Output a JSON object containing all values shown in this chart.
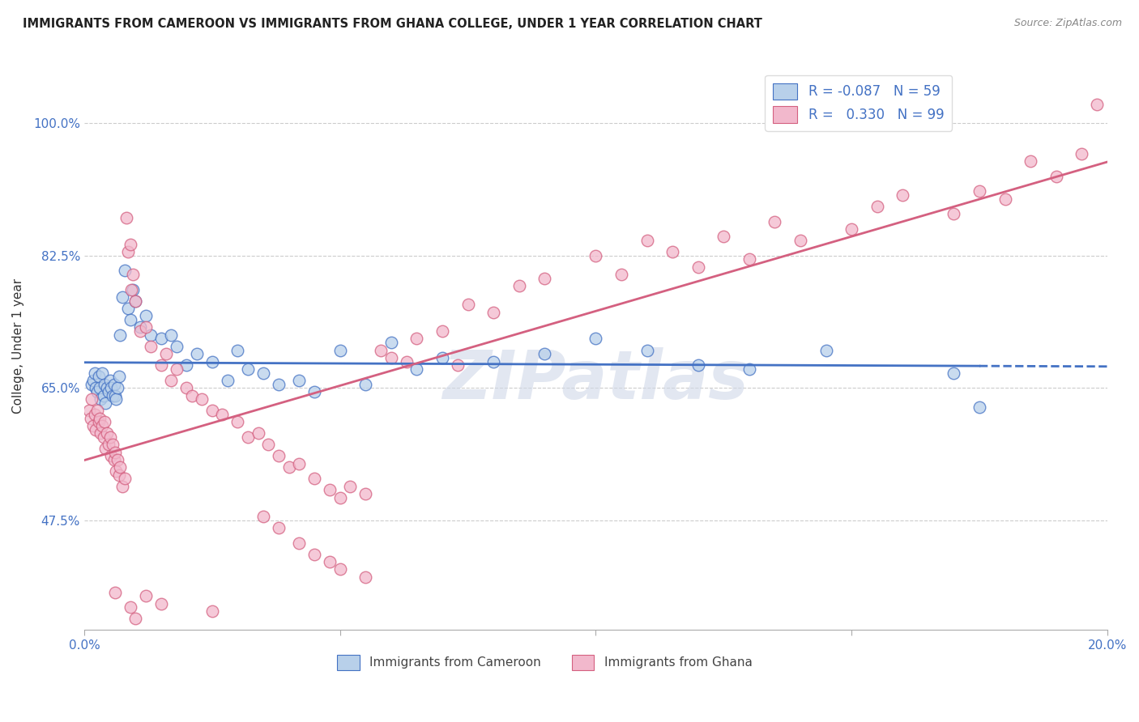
{
  "title": "IMMIGRANTS FROM CAMEROON VS IMMIGRANTS FROM GHANA COLLEGE, UNDER 1 YEAR CORRELATION CHART",
  "source": "Source: ZipAtlas.com",
  "ylabel": "College, Under 1 year",
  "y_ticks": [
    47.5,
    65.0,
    82.5,
    100.0
  ],
  "y_tick_labels": [
    "47.5%",
    "65.0%",
    "82.5%",
    "100.0%"
  ],
  "xlim": [
    0.0,
    20.0
  ],
  "ylim": [
    33.0,
    108.0
  ],
  "cameroon_color": "#b8d0ea",
  "ghana_color": "#f2b8cc",
  "cameroon_line_color": "#4472c4",
  "ghana_line_color": "#d46080",
  "legend_label_cameroon": "Immigrants from Cameroon",
  "legend_label_ghana": "Immigrants from Ghana",
  "cameroon_points": [
    [
      0.15,
      65.5
    ],
    [
      0.18,
      66.0
    ],
    [
      0.2,
      67.0
    ],
    [
      0.22,
      65.0
    ],
    [
      0.25,
      64.5
    ],
    [
      0.28,
      66.5
    ],
    [
      0.3,
      65.0
    ],
    [
      0.32,
      63.5
    ],
    [
      0.35,
      67.0
    ],
    [
      0.38,
      64.0
    ],
    [
      0.4,
      65.5
    ],
    [
      0.42,
      63.0
    ],
    [
      0.45,
      65.0
    ],
    [
      0.48,
      64.5
    ],
    [
      0.5,
      66.0
    ],
    [
      0.52,
      65.0
    ],
    [
      0.55,
      64.0
    ],
    [
      0.58,
      65.5
    ],
    [
      0.6,
      64.0
    ],
    [
      0.62,
      63.5
    ],
    [
      0.65,
      65.0
    ],
    [
      0.68,
      66.5
    ],
    [
      0.7,
      72.0
    ],
    [
      0.75,
      77.0
    ],
    [
      0.8,
      80.5
    ],
    [
      0.85,
      75.5
    ],
    [
      0.9,
      74.0
    ],
    [
      0.95,
      78.0
    ],
    [
      1.0,
      76.5
    ],
    [
      1.1,
      73.0
    ],
    [
      1.2,
      74.5
    ],
    [
      1.3,
      72.0
    ],
    [
      1.5,
      71.5
    ],
    [
      1.7,
      72.0
    ],
    [
      1.8,
      70.5
    ],
    [
      2.0,
      68.0
    ],
    [
      2.2,
      69.5
    ],
    [
      2.5,
      68.5
    ],
    [
      2.8,
      66.0
    ],
    [
      3.0,
      70.0
    ],
    [
      3.2,
      67.5
    ],
    [
      3.5,
      67.0
    ],
    [
      3.8,
      65.5
    ],
    [
      4.2,
      66.0
    ],
    [
      4.5,
      64.5
    ],
    [
      5.0,
      70.0
    ],
    [
      5.5,
      65.5
    ],
    [
      6.0,
      71.0
    ],
    [
      6.5,
      67.5
    ],
    [
      7.0,
      69.0
    ],
    [
      8.0,
      68.5
    ],
    [
      9.0,
      69.5
    ],
    [
      10.0,
      71.5
    ],
    [
      11.0,
      70.0
    ],
    [
      12.0,
      68.0
    ],
    [
      13.0,
      67.5
    ],
    [
      14.5,
      70.0
    ],
    [
      17.0,
      67.0
    ],
    [
      17.5,
      62.5
    ]
  ],
  "ghana_points": [
    [
      0.1,
      62.0
    ],
    [
      0.12,
      61.0
    ],
    [
      0.15,
      63.5
    ],
    [
      0.18,
      60.0
    ],
    [
      0.2,
      61.5
    ],
    [
      0.22,
      59.5
    ],
    [
      0.25,
      62.0
    ],
    [
      0.28,
      60.5
    ],
    [
      0.3,
      61.0
    ],
    [
      0.32,
      59.0
    ],
    [
      0.35,
      60.0
    ],
    [
      0.38,
      58.5
    ],
    [
      0.4,
      60.5
    ],
    [
      0.42,
      57.0
    ],
    [
      0.45,
      59.0
    ],
    [
      0.48,
      57.5
    ],
    [
      0.5,
      58.5
    ],
    [
      0.52,
      56.0
    ],
    [
      0.55,
      57.5
    ],
    [
      0.58,
      55.5
    ],
    [
      0.6,
      56.5
    ],
    [
      0.62,
      54.0
    ],
    [
      0.65,
      55.5
    ],
    [
      0.68,
      53.5
    ],
    [
      0.7,
      54.5
    ],
    [
      0.75,
      52.0
    ],
    [
      0.8,
      53.0
    ],
    [
      0.82,
      87.5
    ],
    [
      0.85,
      83.0
    ],
    [
      0.9,
      84.0
    ],
    [
      0.92,
      78.0
    ],
    [
      0.95,
      80.0
    ],
    [
      1.0,
      76.5
    ],
    [
      1.1,
      72.5
    ],
    [
      1.2,
      73.0
    ],
    [
      1.3,
      70.5
    ],
    [
      1.5,
      68.0
    ],
    [
      1.6,
      69.5
    ],
    [
      1.7,
      66.0
    ],
    [
      1.8,
      67.5
    ],
    [
      2.0,
      65.0
    ],
    [
      2.1,
      64.0
    ],
    [
      2.3,
      63.5
    ],
    [
      2.5,
      62.0
    ],
    [
      2.7,
      61.5
    ],
    [
      3.0,
      60.5
    ],
    [
      3.2,
      58.5
    ],
    [
      3.4,
      59.0
    ],
    [
      3.6,
      57.5
    ],
    [
      3.8,
      56.0
    ],
    [
      4.0,
      54.5
    ],
    [
      4.2,
      55.0
    ],
    [
      4.5,
      53.0
    ],
    [
      4.8,
      51.5
    ],
    [
      5.0,
      50.5
    ],
    [
      5.2,
      52.0
    ],
    [
      5.5,
      51.0
    ],
    [
      5.8,
      70.0
    ],
    [
      6.0,
      69.0
    ],
    [
      6.3,
      68.5
    ],
    [
      6.5,
      71.5
    ],
    [
      7.0,
      72.5
    ],
    [
      7.3,
      68.0
    ],
    [
      7.5,
      76.0
    ],
    [
      8.0,
      75.0
    ],
    [
      8.5,
      78.5
    ],
    [
      9.0,
      79.5
    ],
    [
      10.0,
      82.5
    ],
    [
      10.5,
      80.0
    ],
    [
      11.0,
      84.5
    ],
    [
      11.5,
      83.0
    ],
    [
      12.0,
      81.0
    ],
    [
      12.5,
      85.0
    ],
    [
      13.0,
      82.0
    ],
    [
      13.5,
      87.0
    ],
    [
      14.0,
      84.5
    ],
    [
      15.0,
      86.0
    ],
    [
      15.5,
      89.0
    ],
    [
      16.0,
      90.5
    ],
    [
      17.0,
      88.0
    ],
    [
      17.5,
      91.0
    ],
    [
      18.0,
      90.0
    ],
    [
      18.5,
      95.0
    ],
    [
      19.0,
      93.0
    ],
    [
      19.5,
      96.0
    ],
    [
      19.8,
      102.5
    ],
    [
      3.5,
      48.0
    ],
    [
      3.8,
      46.5
    ],
    [
      4.2,
      44.5
    ],
    [
      4.5,
      43.0
    ],
    [
      4.8,
      42.0
    ],
    [
      5.0,
      41.0
    ],
    [
      5.5,
      40.0
    ],
    [
      1.2,
      37.5
    ],
    [
      1.5,
      36.5
    ],
    [
      0.6,
      38.0
    ],
    [
      0.9,
      36.0
    ],
    [
      1.0,
      34.5
    ],
    [
      2.5,
      35.5
    ]
  ],
  "blue_line_intercept": 67.5,
  "blue_line_slope": -0.18,
  "pink_line_intercept": 58.0,
  "pink_line_slope": 2.1,
  "blue_solid_end": 17.5,
  "watermark": "ZIPatlas"
}
